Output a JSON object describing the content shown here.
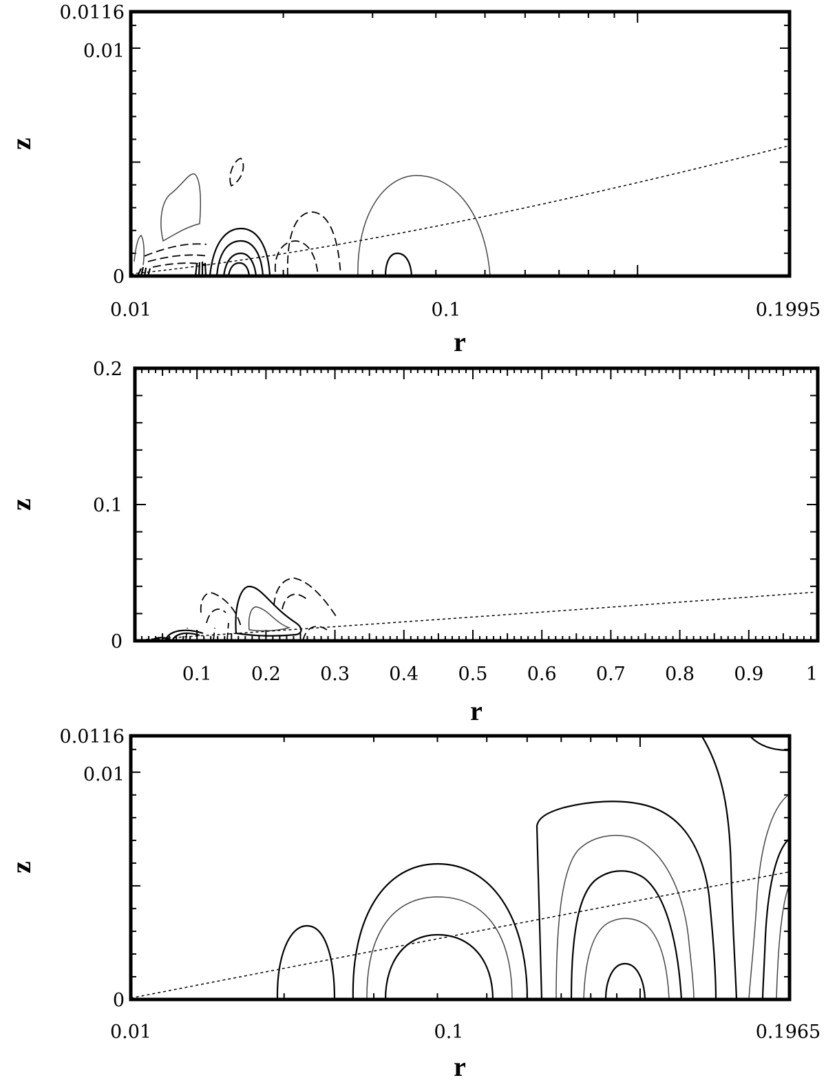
{
  "chart_data": [
    {
      "type": "contour",
      "xlabel": "r",
      "ylabel": "z",
      "xscale": "log",
      "xlim": [
        0.01,
        0.1995
      ],
      "ylim": [
        0,
        0.0116
      ],
      "xticks": [
        "0.01",
        "0.1",
        "0.1995"
      ],
      "yticks": [
        "0",
        "0.01",
        "0.0116"
      ],
      "reference_line": "dotted, z ≈ 0.0057 at r = 0.1995"
    },
    {
      "type": "contour",
      "xlabel": "r",
      "ylabel": "z",
      "xscale": "linear",
      "xlim": [
        0.01,
        1
      ],
      "ylim": [
        0,
        0.2
      ],
      "xticks": [
        "0.1",
        "0.2",
        "0.3",
        "0.4",
        "0.5",
        "0.6",
        "0.7",
        "0.8",
        "0.9",
        "1"
      ],
      "yticks": [
        "0",
        "0.1",
        "0.2"
      ],
      "reference_line": "dotted, z ≈ 0.036 at r = 1"
    },
    {
      "type": "contour",
      "xlabel": "r",
      "ylabel": "z",
      "xscale": "log",
      "xlim": [
        0.01,
        0.1965
      ],
      "ylim": [
        0,
        0.0116
      ],
      "xticks": [
        "0.01",
        "0.1",
        "0.1965"
      ],
      "yticks": [
        "0",
        "0.01",
        "0.0116"
      ],
      "reference_line": "dashed, z ≈ 0.0058 at r = 0.1965"
    }
  ]
}
